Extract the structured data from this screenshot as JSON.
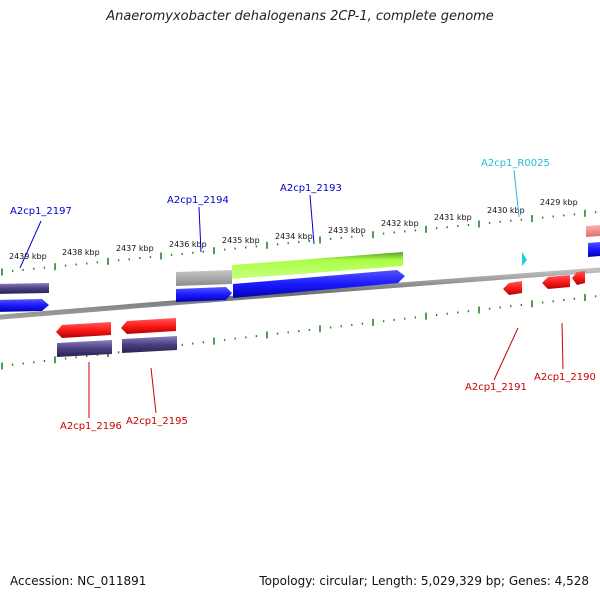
{
  "title": "Anaeromyxobacter dehalogenans 2CP-1, complete genome",
  "scale_labels": [
    "2439 kbp",
    "2438 kbp",
    "2437 kbp",
    "2436 kbp",
    "2435 kbp",
    "2434 kbp",
    "2433 kbp",
    "2432 kbp",
    "2431 kbp",
    "2430 kbp",
    "2429 kbp"
  ],
  "gene_labels": {
    "a2197": "A2cp1_2197",
    "a2194": "A2cp1_2194",
    "a2193": "A2cp1_2193",
    "r0025": "A2cp1_R0025",
    "a2196": "A2cp1_2196",
    "a2195": "A2cp1_2195",
    "a2191": "A2cp1_2191",
    "a2190": "A2cp1_2190"
  },
  "colors": {
    "forward_gene": "#1a1aff",
    "forward_gene_dark": "#0000c0",
    "reverse_gene": "#ff1a1a",
    "rna_gene": "#22ccdd",
    "cds_feature": "#4a4080",
    "highlight_feature": "#aaff44",
    "backbone": "#808080",
    "tick": "#228822",
    "forward_label": "#0000cc",
    "reverse_label": "#cc0000",
    "rna_label": "#22bbdd"
  },
  "footer": {
    "accession": "Accession: NC_011891",
    "stats": "Topology: circular; Length: 5,029,329 bp; Genes: 4,528"
  }
}
